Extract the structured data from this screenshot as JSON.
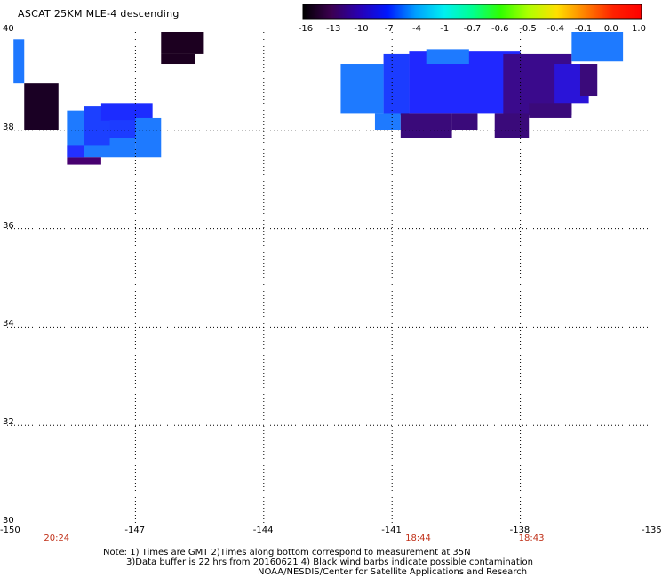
{
  "title": "ASCAT 25KM MLE-4 descending",
  "colorbar": {
    "labels": [
      "-16",
      "-13",
      "-10",
      "-7",
      "-4",
      "-1",
      "-0.7",
      "-0.6",
      "-0.5",
      "-0.4",
      "-0.1",
      "0.0",
      "1.0"
    ],
    "colors": [
      "#000000",
      "#3c0050",
      "#2800b4",
      "#0018ff",
      "#00a0ff",
      "#00f0f0",
      "#00ff90",
      "#30ff00",
      "#b0ff00",
      "#ffe000",
      "#ff8000",
      "#ff2000",
      "#ff0000"
    ]
  },
  "axes": {
    "lon_labels": [
      "-150",
      "-147",
      "-144",
      "-141",
      "-138",
      "-135"
    ],
    "lat_labels": [
      "40",
      "38",
      "36",
      "34",
      "32",
      "30"
    ],
    "lon_range": [
      -150,
      -135
    ],
    "lat_range": [
      30,
      40
    ]
  },
  "time_labels": [
    {
      "lon": -148.85,
      "text": "20:24"
    },
    {
      "lon": -140.4,
      "text": "18:44"
    },
    {
      "lon": -137.75,
      "text": "18:43"
    }
  ],
  "notes": {
    "line1": "Note: 1) Times are GMT 2)Times along bottom correspond to measurement at 35N",
    "line2": "3)Data buffer is 22 hrs from 20160621 4) Black wind barbs indicate possible contamination",
    "line3": "NOAA/NESDIS/Center for Satellite Applications and Research"
  },
  "data_cells": [
    {
      "lon0": -149.85,
      "lon1": -149.6,
      "lat0": 38.95,
      "lat1": 39.85,
      "color": "#1e78ff"
    },
    {
      "lon0": -149.6,
      "lon1": -148.8,
      "lat0": 38.0,
      "lat1": 38.95,
      "color": "#1a0024"
    },
    {
      "lon0": -146.4,
      "lon1": -145.4,
      "lat0": 39.55,
      "lat1": 40.0,
      "color": "#1c0020"
    },
    {
      "lon0": -146.4,
      "lon1": -145.6,
      "lat0": 39.35,
      "lat1": 39.55,
      "color": "#1c0020"
    },
    {
      "lon0": -148.6,
      "lon1": -147.0,
      "lat0": 37.45,
      "lat1": 38.4,
      "color": "#1e7aff"
    },
    {
      "lon0": -148.2,
      "lon1": -147.6,
      "lat0": 37.7,
      "lat1": 38.5,
      "color": "#1c40ff"
    },
    {
      "lon0": -147.8,
      "lon1": -146.6,
      "lat0": 38.2,
      "lat1": 38.55,
      "color": "#1c2cff"
    },
    {
      "lon0": -147.6,
      "lon1": -147.0,
      "lat0": 37.85,
      "lat1": 38.2,
      "color": "#1c3cff"
    },
    {
      "lon0": -147.0,
      "lon1": -146.4,
      "lat0": 37.45,
      "lat1": 38.25,
      "color": "#1e7aff"
    },
    {
      "lon0": -148.6,
      "lon1": -147.8,
      "lat0": 37.3,
      "lat1": 37.45,
      "color": "#480070"
    },
    {
      "lon0": -148.6,
      "lon1": -148.2,
      "lat0": 37.45,
      "lat1": 37.7,
      "color": "#2430ff"
    },
    {
      "lon0": -140.6,
      "lon1": -138.0,
      "lat0": 38.35,
      "lat1": 39.6,
      "color": "#2028ff"
    },
    {
      "lon0": -138.4,
      "lon1": -136.8,
      "lat0": 38.3,
      "lat1": 39.55,
      "color": "#3a0a8c"
    },
    {
      "lon0": -137.2,
      "lon1": -136.4,
      "lat0": 38.55,
      "lat1": 39.35,
      "color": "#2a14d8"
    },
    {
      "lon0": -141.2,
      "lon1": -140.6,
      "lat0": 38.3,
      "lat1": 39.55,
      "color": "#1c3cff"
    },
    {
      "lon0": -142.2,
      "lon1": -141.2,
      "lat0": 38.35,
      "lat1": 39.35,
      "color": "#1e7aff"
    },
    {
      "lon0": -141.4,
      "lon1": -140.8,
      "lat0": 38.0,
      "lat1": 38.35,
      "color": "#1e7aff"
    },
    {
      "lon0": -140.8,
      "lon1": -139.6,
      "lat0": 37.85,
      "lat1": 38.35,
      "color": "#3a0a7a"
    },
    {
      "lon0": -139.6,
      "lon1": -139.0,
      "lat0": 38.0,
      "lat1": 38.35,
      "color": "#3a0a7a"
    },
    {
      "lon0": -138.6,
      "lon1": -137.8,
      "lat0": 37.85,
      "lat1": 38.35,
      "color": "#3a0a7a"
    },
    {
      "lon0": -137.8,
      "lon1": -136.8,
      "lat0": 38.25,
      "lat1": 38.55,
      "color": "#3a0a7a"
    },
    {
      "lon0": -136.8,
      "lon1": -135.6,
      "lat0": 39.4,
      "lat1": 40.0,
      "color": "#1e7aff"
    },
    {
      "lon0": -136.6,
      "lon1": -136.2,
      "lat0": 38.7,
      "lat1": 39.35,
      "color": "#3a0a7a"
    },
    {
      "lon0": -140.2,
      "lon1": -139.2,
      "lat0": 39.35,
      "lat1": 39.65,
      "color": "#1e7aff"
    }
  ]
}
